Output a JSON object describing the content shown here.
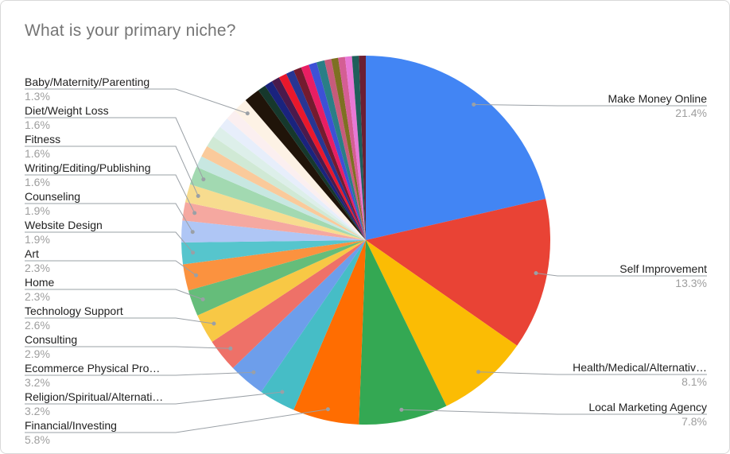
{
  "chart_data": {
    "type": "pie",
    "title": "What is your primary niche?",
    "direction": "clockwise",
    "start_angle_deg": 0,
    "legend_position": "callout-labels",
    "colors": {
      "background": "#ffffff",
      "card_border": "#d9d9d9",
      "title_text": "#757575",
      "label_text": "#212121",
      "percent_text": "#9e9e9e",
      "leader_line": "#9aa0a6"
    },
    "slices": [
      {
        "label": "Make Money Online",
        "value": 21.4,
        "display": "21.4%",
        "color": "#4285F4",
        "callout": "right"
      },
      {
        "label": "Self Improvement",
        "value": 13.3,
        "display": "13.3%",
        "color": "#E94335",
        "callout": "right"
      },
      {
        "label": "Health/Medical/Alternativ…",
        "value": 8.1,
        "display": "8.1%",
        "color": "#FBBC04",
        "callout": "right"
      },
      {
        "label": "Local Marketing Agency",
        "value": 7.8,
        "display": "7.8%",
        "color": "#34A853",
        "callout": "right"
      },
      {
        "label": "Financial/Investing",
        "value": 5.8,
        "display": "5.8%",
        "color": "#FF6D01",
        "callout": "left"
      },
      {
        "label": "Religion/Spiritual/Alternati…",
        "value": 3.2,
        "display": "3.2%",
        "color": "#46BDC6",
        "callout": "left"
      },
      {
        "label": "Ecommerce Physical Pro…",
        "value": 3.2,
        "display": "3.2%",
        "color": "#6D9EEB",
        "callout": "left"
      },
      {
        "label": "Consulting",
        "value": 2.9,
        "display": "2.9%",
        "color": "#EE7168",
        "callout": "left"
      },
      {
        "label": "Technology Support",
        "value": 2.6,
        "display": "2.6%",
        "color": "#F8C845",
        "callout": "left"
      },
      {
        "label": "Home",
        "value": 2.3,
        "display": "2.3%",
        "color": "#65BD7A",
        "callout": "left"
      },
      {
        "label": "Art",
        "value": 2.3,
        "display": "2.3%",
        "color": "#FB923F",
        "callout": "left"
      },
      {
        "label": "Website Design",
        "value": 1.9,
        "display": "1.9%",
        "color": "#56C5CD",
        "callout": "left"
      },
      {
        "label": "Counseling",
        "value": 1.9,
        "display": "1.9%",
        "color": "#AFC6F5",
        "callout": "left"
      },
      {
        "label": "Writing/Editing/Publishing",
        "value": 1.6,
        "display": "1.6%",
        "color": "#F5A8A0",
        "callout": "left"
      },
      {
        "label": "Fitness",
        "value": 1.6,
        "display": "1.6%",
        "color": "#F7DC8F",
        "callout": "left"
      },
      {
        "label": "Diet/Weight Loss",
        "value": 1.6,
        "display": "1.6%",
        "color": "#A2D9B1",
        "callout": "left"
      },
      {
        "label": "",
        "value": 1.0,
        "display": "",
        "color": "#C7E7E1",
        "callout": "none"
      },
      {
        "label": "",
        "value": 1.0,
        "display": "",
        "color": "#FACA9B",
        "callout": "none"
      },
      {
        "label": "",
        "value": 1.0,
        "display": "",
        "color": "#D0E9D5",
        "callout": "none"
      },
      {
        "label": "",
        "value": 1.0,
        "display": "",
        "color": "#DDEFEA",
        "callout": "none"
      },
      {
        "label": "",
        "value": 0.95,
        "display": "",
        "color": "#E7EEFB",
        "callout": "none"
      },
      {
        "label": "",
        "value": 0.95,
        "display": "",
        "color": "#FBEFF0",
        "callout": "none"
      },
      {
        "label": "Baby/Maternity/Parenting",
        "value": 1.3,
        "display": "1.3%",
        "color": "#FDF2E5",
        "callout": "left"
      },
      {
        "label": "",
        "value": 1.4,
        "display": "",
        "color": "#201409",
        "callout": "none"
      },
      {
        "label": "",
        "value": 0.7,
        "display": "",
        "color": "#16382C",
        "callout": "none"
      },
      {
        "label": "",
        "value": 0.7,
        "display": "",
        "color": "#1A237E",
        "callout": "none"
      },
      {
        "label": "",
        "value": 0.7,
        "display": "",
        "color": "#4A1A4C",
        "callout": "none"
      },
      {
        "label": "",
        "value": 0.7,
        "display": "",
        "color": "#E8182C",
        "callout": "none"
      },
      {
        "label": "",
        "value": 0.7,
        "display": "",
        "color": "#283593",
        "callout": "none"
      },
      {
        "label": "",
        "value": 0.7,
        "display": "",
        "color": "#741B2F",
        "callout": "none"
      },
      {
        "label": "",
        "value": 0.7,
        "display": "",
        "color": "#E91E63",
        "callout": "none"
      },
      {
        "label": "",
        "value": 0.7,
        "display": "",
        "color": "#3D51D6",
        "callout": "none"
      },
      {
        "label": "",
        "value": 0.7,
        "display": "",
        "color": "#2A7E86",
        "callout": "none"
      },
      {
        "label": "",
        "value": 0.6,
        "display": "",
        "color": "#C75B7B",
        "callout": "none"
      },
      {
        "label": "",
        "value": 0.6,
        "display": "",
        "color": "#7E7022",
        "callout": "none"
      },
      {
        "label": "",
        "value": 0.6,
        "display": "",
        "color": "#D45E94",
        "callout": "none"
      },
      {
        "label": "",
        "value": 0.6,
        "display": "",
        "color": "#E878D6",
        "callout": "none"
      },
      {
        "label": "",
        "value": 0.6,
        "display": "",
        "color": "#1F5F5B",
        "callout": "none"
      },
      {
        "label": "",
        "value": 0.6,
        "display": "",
        "color": "#6B1F33",
        "callout": "none"
      }
    ]
  }
}
